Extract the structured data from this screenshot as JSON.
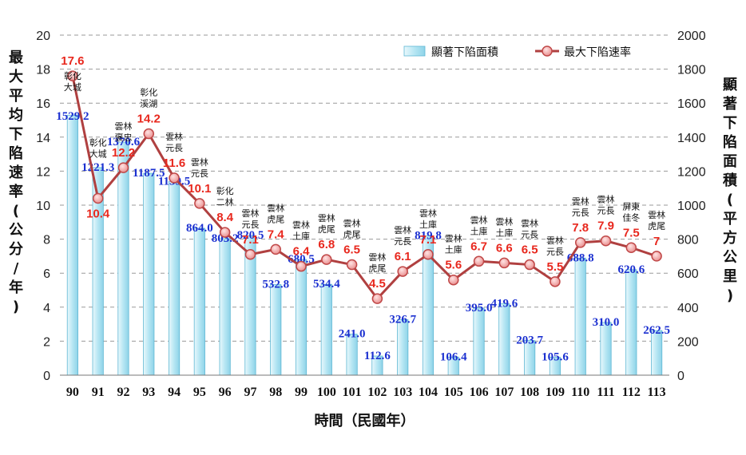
{
  "chart_data": {
    "type": "bar+line",
    "xlabel": "時間（民國年）",
    "ylabel_left": "最大平均下陷速率(公分/年)",
    "ylabel_right": "顯著下陷面積(平方公里)",
    "ylim_left": [
      0,
      20
    ],
    "ylim_right": [
      0,
      2000
    ],
    "yticks_left": [
      0,
      2,
      4,
      6,
      8,
      10,
      12,
      14,
      16,
      18,
      20
    ],
    "yticks_right": [
      0,
      200,
      400,
      600,
      800,
      1000,
      1200,
      1400,
      1600,
      1800,
      2000
    ],
    "grid": "horizontal dashed",
    "legend_position": "top-right",
    "categories": [
      "90",
      "91",
      "92",
      "93",
      "94",
      "95",
      "96",
      "97",
      "98",
      "99",
      "100",
      "101",
      "102",
      "103",
      "104",
      "105",
      "106",
      "107",
      "108",
      "109",
      "110",
      "111",
      "112",
      "113"
    ],
    "series": [
      {
        "name": "顯著下陷面積",
        "type": "bar",
        "axis": "right",
        "color": "#bfe9f5",
        "label_color": "#1a2fd0",
        "values": [
          1529.2,
          1221.3,
          1370.6,
          1187.5,
          1139.5,
          864.0,
          803.2,
          820.5,
          532.8,
          680.5,
          534.4,
          241.0,
          112.6,
          326.7,
          819.8,
          106.4,
          395.0,
          419.6,
          203.7,
          105.6,
          688.8,
          310.0,
          620.6,
          262.5
        ],
        "labels": [
          "1529.2",
          "1221.3",
          "1370.6",
          "1187.5",
          "1139.5",
          "864.0",
          "803.2",
          "820.5",
          "532.8",
          "680.5",
          "534.4",
          "241.0",
          "112.6",
          "326.7",
          "819.8",
          "106.4",
          "395.0",
          "419.6",
          "203.7",
          "105.6",
          "688.8",
          "310.0",
          "620.6",
          "262.5"
        ]
      },
      {
        "name": "最大下陷速率",
        "type": "line",
        "axis": "left",
        "color": "#b04040",
        "label_color": "#e8281e",
        "values": [
          17.6,
          10.4,
          12.2,
          14.2,
          11.6,
          10.1,
          8.4,
          7.1,
          7.4,
          6.4,
          6.8,
          6.5,
          4.5,
          6.1,
          7.1,
          5.6,
          6.7,
          6.6,
          6.5,
          5.5,
          7.8,
          7.9,
          7.5,
          7
        ],
        "labels": [
          "17.6",
          "10.4",
          "12.2",
          "14.2",
          "11.6",
          "10.1",
          "8.4",
          "7.1",
          "7.4",
          "6.4",
          "6.8",
          "6.5",
          "4.5",
          "6.1",
          "7.1",
          "5.6",
          "6.7",
          "6.6",
          "6.5",
          "5.5",
          "7.8",
          "7.9",
          "7.5",
          "7"
        ]
      }
    ],
    "locations": [
      [
        "彰化",
        "大城"
      ],
      [
        "彰化",
        "大城"
      ],
      [
        "雲林",
        "褒忠"
      ],
      [
        "彰化",
        "溪湖"
      ],
      [
        "雲林",
        "元長"
      ],
      [
        "雲林",
        "元長"
      ],
      [
        "彰化",
        "二林"
      ],
      [
        "雲林",
        "元長"
      ],
      [
        "雲林",
        "虎尾"
      ],
      [
        "雲林",
        "土庫"
      ],
      [
        "雲林",
        "虎尾"
      ],
      [
        "雲林",
        "虎尾"
      ],
      [
        "雲林",
        "虎尾"
      ],
      [
        "雲林",
        "元長"
      ],
      [
        "雲林",
        "土庫"
      ],
      [
        "雲林",
        "土庫"
      ],
      [
        "雲林",
        "土庫"
      ],
      [
        "雲林",
        "土庫"
      ],
      [
        "雲林",
        "元長"
      ],
      [
        "雲林",
        "元長"
      ],
      [
        "雲林",
        "元長"
      ],
      [
        "雲林",
        "元長"
      ],
      [
        "屏東",
        "佳冬"
      ],
      [
        "雲林",
        "虎尾"
      ]
    ]
  }
}
